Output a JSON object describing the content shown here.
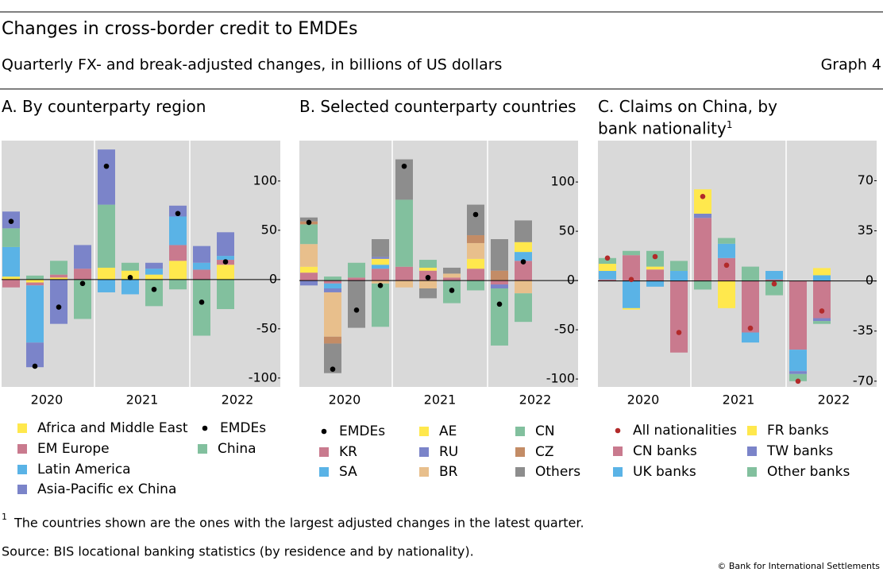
{
  "header": {
    "title": "Changes in cross-border credit to EMDEs",
    "subtitle": "Quarterly FX- and break-adjusted changes, in billions of US dollars",
    "graph_label": "Graph 4"
  },
  "chart_data": [
    {
      "type": "bar",
      "title": "A. By counterparty region",
      "categories": [
        "2020",
        null,
        null,
        null,
        "2021",
        null,
        null,
        null,
        "2022",
        null
      ],
      "ylim": [
        -109,
        141
      ],
      "yticks": [
        -100,
        -50,
        0,
        50,
        100
      ],
      "series": [
        {
          "name": "Africa and Middle East",
          "color": "#ffe84d",
          "values": [
            3,
            -3,
            2,
            0,
            12,
            9,
            5,
            19,
            0,
            15
          ]
        },
        {
          "name": "EM Europe",
          "color": "#c97a8e",
          "values": [
            -8,
            -3,
            3,
            11,
            0,
            0,
            0,
            16,
            10,
            5
          ]
        },
        {
          "name": "Latin America",
          "color": "#5ab3e6",
          "values": [
            30,
            -58,
            0,
            0,
            -13,
            -15,
            6,
            29,
            7,
            4
          ]
        },
        {
          "name": "China",
          "color": "#82c09e",
          "values": [
            19,
            4,
            14,
            -40,
            64,
            8,
            -27,
            -10,
            -57,
            -30
          ]
        },
        {
          "name": "Asia-Pacific ex China",
          "color": "#7b84c9",
          "values": [
            17,
            -25,
            -45,
            24,
            56,
            0,
            6,
            11,
            17,
            24
          ]
        },
        {
          "name": "EMDEs",
          "type": "dot",
          "color": "#000000",
          "values": [
            59,
            -88,
            -28,
            -4,
            115,
            2,
            -10,
            67,
            -23,
            18
          ]
        }
      ]
    },
    {
      "type": "bar",
      "title": "B. Selected counterparty countries",
      "categories": [
        "2020",
        null,
        null,
        null,
        "2021",
        null,
        null,
        null,
        "2022",
        null
      ],
      "ylim": [
        -108,
        142
      ],
      "yticks": [
        -100,
        -50,
        0,
        50,
        100
      ],
      "series": [
        {
          "name": "KR",
          "color": "#c97a8e",
          "values": [
            8,
            -3,
            3,
            12,
            14,
            10,
            3,
            12,
            -4,
            20
          ]
        },
        {
          "name": "SA",
          "color": "#5ab3e6",
          "values": [
            0,
            -5,
            0,
            4,
            0,
            0,
            0,
            0,
            0,
            9
          ]
        },
        {
          "name": "AE",
          "color": "#ffe84d",
          "values": [
            6,
            0,
            0,
            6,
            0,
            3,
            0,
            10,
            0,
            10
          ]
        },
        {
          "name": "RU",
          "color": "#7b84c9",
          "values": [
            -5,
            -4,
            0,
            2,
            0,
            0,
            0,
            0,
            -4,
            0
          ]
        },
        {
          "name": "BR",
          "color": "#e8bf8c",
          "values": [
            23,
            -45,
            0,
            -3,
            -7,
            -8,
            4,
            16,
            0,
            -13
          ]
        },
        {
          "name": "CN",
          "color": "#82c09e",
          "values": [
            20,
            4,
            15,
            -44,
            68,
            8,
            -23,
            -10,
            -58,
            -29
          ]
        },
        {
          "name": "CZ",
          "color": "#c38c66",
          "values": [
            3,
            -7,
            0,
            0,
            0,
            0,
            0,
            8,
            10,
            0
          ]
        },
        {
          "name": "Others",
          "color": "#8d8d8d",
          "values": [
            4,
            -30,
            -48,
            18,
            41,
            -10,
            6,
            31,
            32,
            22
          ]
        },
        {
          "name": "EMDEs",
          "type": "dot",
          "color": "#000000",
          "values": [
            59,
            -90,
            -30,
            -5,
            116,
            3,
            -10,
            67,
            -24,
            19
          ]
        }
      ]
    },
    {
      "type": "bar",
      "title": "C. Claims on China, by bank nationality",
      "title_note": "1",
      "categories": [
        "2020",
        null,
        null,
        null,
        "2021",
        null,
        null,
        null,
        "2022",
        null
      ],
      "ylim": [
        -74,
        98
      ],
      "yticks": [
        -70,
        -35,
        0,
        35,
        70
      ],
      "series": [
        {
          "name": "CN banks",
          "color": "#c97a8e",
          "values": [
            1,
            18,
            8,
            -50,
            44,
            16,
            -36,
            1,
            -48,
            -26
          ]
        },
        {
          "name": "UK banks",
          "color": "#5ab3e6",
          "values": [
            6,
            -19,
            -4,
            7,
            0,
            10,
            -7,
            6,
            -15,
            4
          ]
        },
        {
          "name": "TW banks",
          "color": "#7b84c9",
          "values": [
            0,
            0,
            0,
            0,
            3,
            0,
            0,
            0,
            -2,
            -2
          ]
        },
        {
          "name": "FR banks",
          "color": "#ffe84d",
          "values": [
            5,
            -1,
            2,
            0,
            17,
            -19,
            0,
            0,
            0,
            5
          ]
        },
        {
          "name": "Other banks",
          "color": "#82c09e",
          "values": [
            4,
            3,
            11,
            7,
            -6,
            4,
            10,
            -10,
            -5,
            -2
          ]
        },
        {
          "name": "All nationalities",
          "type": "dot",
          "color": "#b22a2a",
          "values": [
            16,
            1,
            17,
            -36,
            59,
            11,
            -33,
            -2,
            -70,
            -21
          ]
        }
      ]
    }
  ],
  "footnotes": [
    {
      "marker": "1",
      "text": "The countries shown are the ones with the largest adjusted changes in the latest quarter."
    }
  ],
  "source": "Source: BIS locational banking statistics (by residence and by nationality).",
  "copyright": "© Bank for International Settlements"
}
